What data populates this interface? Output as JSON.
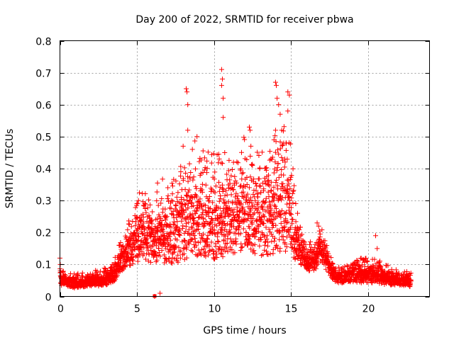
{
  "chart_data": {
    "type": "scatter",
    "title": "Day 200 of 2022, SRMTID for receiver pbwa",
    "xlabel": "GPS time / hours",
    "ylabel": "SRMTID / TECUs",
    "xlim": [
      0,
      24
    ],
    "ylim": [
      0,
      0.8
    ],
    "x_ticks": [
      0,
      5,
      10,
      15,
      20
    ],
    "x_tick_labels": [
      "0",
      "5",
      "10",
      "15",
      "20"
    ],
    "y_ticks": [
      0,
      0.1,
      0.2,
      0.3,
      0.4,
      0.5,
      0.6,
      0.7,
      0.8
    ],
    "y_tick_labels": [
      "0",
      "0.1",
      "0.2",
      "0.3",
      "0.4",
      "0.5",
      "0.6",
      "0.7",
      "0.8"
    ],
    "grid": true,
    "marker": "plus",
    "color": "#ff0000",
    "envelope": {
      "hours": [
        0,
        0.05,
        0.5,
        1,
        2,
        3,
        3.5,
        4,
        4.5,
        5,
        5.5,
        6,
        7,
        8,
        9,
        10,
        11,
        12,
        13,
        14,
        14.5,
        15,
        15.5,
        16,
        16.5,
        17,
        17.5,
        18,
        19,
        20,
        21,
        22,
        22.8
      ],
      "baseline": [
        0.1,
        0.045,
        0.04,
        0.035,
        0.04,
        0.045,
        0.06,
        0.1,
        0.13,
        0.15,
        0.16,
        0.15,
        0.16,
        0.18,
        0.2,
        0.18,
        0.2,
        0.22,
        0.2,
        0.22,
        0.24,
        0.2,
        0.13,
        0.1,
        0.1,
        0.13,
        0.08,
        0.05,
        0.06,
        0.06,
        0.05,
        0.045,
        0.04
      ],
      "spread": [
        0.02,
        0.02,
        0.02,
        0.02,
        0.02,
        0.025,
        0.03,
        0.05,
        0.07,
        0.09,
        0.1,
        0.1,
        0.12,
        0.15,
        0.15,
        0.15,
        0.14,
        0.16,
        0.16,
        0.18,
        0.2,
        0.15,
        0.06,
        0.04,
        0.04,
        0.05,
        0.03,
        0.02,
        0.03,
        0.04,
        0.03,
        0.02,
        0.02
      ]
    },
    "sample_interval_hours": 0.008,
    "notable_points": [
      {
        "x": 0.0,
        "y": 0.12
      },
      {
        "x": 0.02,
        "y": 0.1
      },
      {
        "x": 5.1,
        "y": 0.3
      },
      {
        "x": 5.0,
        "y": 0.29
      },
      {
        "x": 6.15,
        "y": 0.0
      },
      {
        "x": 6.5,
        "y": 0.01
      },
      {
        "x": 8.2,
        "y": 0.65
      },
      {
        "x": 8.25,
        "y": 0.64
      },
      {
        "x": 8.3,
        "y": 0.6
      },
      {
        "x": 8.3,
        "y": 0.52
      },
      {
        "x": 8.0,
        "y": 0.47
      },
      {
        "x": 8.6,
        "y": 0.46
      },
      {
        "x": 8.9,
        "y": 0.5
      },
      {
        "x": 10.5,
        "y": 0.71
      },
      {
        "x": 10.55,
        "y": 0.68
      },
      {
        "x": 10.5,
        "y": 0.66
      },
      {
        "x": 10.6,
        "y": 0.62
      },
      {
        "x": 10.6,
        "y": 0.56
      },
      {
        "x": 10.7,
        "y": 0.45
      },
      {
        "x": 12.3,
        "y": 0.53
      },
      {
        "x": 12.35,
        "y": 0.52
      },
      {
        "x": 12.4,
        "y": 0.47
      },
      {
        "x": 12.5,
        "y": 0.41
      },
      {
        "x": 14.0,
        "y": 0.67
      },
      {
        "x": 14.05,
        "y": 0.66
      },
      {
        "x": 14.1,
        "y": 0.62
      },
      {
        "x": 14.2,
        "y": 0.6
      },
      {
        "x": 14.3,
        "y": 0.57
      },
      {
        "x": 14.0,
        "y": 0.52
      },
      {
        "x": 14.4,
        "y": 0.52
      },
      {
        "x": 13.9,
        "y": 0.49
      },
      {
        "x": 14.8,
        "y": 0.64
      },
      {
        "x": 14.9,
        "y": 0.63
      },
      {
        "x": 14.8,
        "y": 0.58
      },
      {
        "x": 14.7,
        "y": 0.48
      },
      {
        "x": 14.6,
        "y": 0.43
      },
      {
        "x": 13.7,
        "y": 0.43
      },
      {
        "x": 20.5,
        "y": 0.19
      },
      {
        "x": 20.6,
        "y": 0.15
      },
      {
        "x": 16.7,
        "y": 0.23
      },
      {
        "x": 16.8,
        "y": 0.22
      }
    ]
  }
}
